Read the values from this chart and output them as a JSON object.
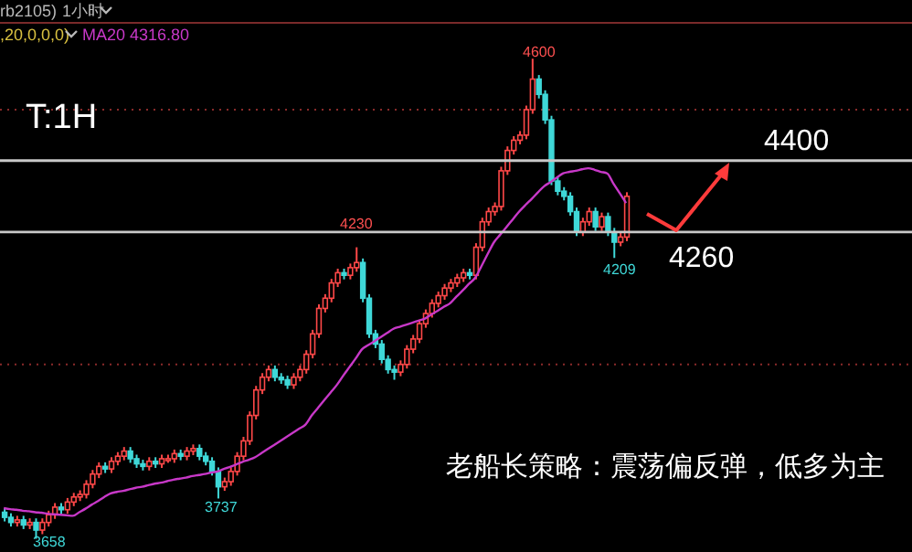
{
  "chart_data": {
    "type": "candlestick",
    "categories": [
      null,
      null,
      null,
      null,
      null,
      null,
      null,
      null,
      null,
      null,
      null,
      null,
      null,
      null,
      null,
      null,
      null,
      null,
      null,
      null,
      null,
      null,
      null,
      null,
      null,
      null,
      null,
      null,
      null,
      null,
      null,
      null,
      null,
      null,
      null,
      null,
      null,
      null,
      null,
      null,
      null,
      null,
      null,
      null,
      null,
      null,
      null,
      null,
      null,
      null,
      null,
      null,
      null,
      null,
      null,
      null,
      null,
      null,
      null,
      null,
      null,
      null,
      null,
      null,
      null,
      null,
      null,
      null,
      null,
      null,
      null,
      null,
      null,
      null,
      null,
      null,
      null,
      null,
      null,
      null,
      null,
      null,
      null,
      null,
      null,
      null,
      null,
      null,
      null,
      null,
      null,
      null,
      null,
      null,
      null,
      null,
      null,
      null,
      null,
      null
    ],
    "ohlc": [
      [
        3710,
        3718,
        3692,
        3700
      ],
      [
        3700,
        3708,
        3682,
        3690
      ],
      [
        3690,
        3703,
        3682,
        3695
      ],
      [
        3695,
        3703,
        3677,
        3685
      ],
      [
        3685,
        3698,
        3677,
        3690
      ],
      [
        3690,
        3698,
        3658,
        3675
      ],
      [
        3675,
        3698,
        3667,
        3690
      ],
      [
        3690,
        3713,
        3682,
        3705
      ],
      [
        3705,
        3728,
        3697,
        3720
      ],
      [
        3720,
        3728,
        3707,
        3715
      ],
      [
        3715,
        3738,
        3707,
        3730
      ],
      [
        3730,
        3748,
        3722,
        3740
      ],
      [
        3740,
        3753,
        3732,
        3745
      ],
      [
        3745,
        3773,
        3737,
        3765
      ],
      [
        3765,
        3793,
        3757,
        3785
      ],
      [
        3785,
        3808,
        3777,
        3800
      ],
      [
        3800,
        3808,
        3787,
        3795
      ],
      [
        3795,
        3818,
        3787,
        3810
      ],
      [
        3810,
        3828,
        3802,
        3820
      ],
      [
        3820,
        3838,
        3812,
        3830
      ],
      [
        3830,
        3838,
        3807,
        3815
      ],
      [
        3815,
        3823,
        3797,
        3805
      ],
      [
        3805,
        3813,
        3792,
        3800
      ],
      [
        3800,
        3818,
        3792,
        3810
      ],
      [
        3810,
        3818,
        3797,
        3805
      ],
      [
        3805,
        3823,
        3797,
        3815
      ],
      [
        3815,
        3823,
        3807,
        3815
      ],
      [
        3815,
        3833,
        3807,
        3825
      ],
      [
        3825,
        3833,
        3812,
        3820
      ],
      [
        3820,
        3838,
        3812,
        3830
      ],
      [
        3830,
        3843,
        3822,
        3835
      ],
      [
        3835,
        3843,
        3812,
        3820
      ],
      [
        3820,
        3828,
        3802,
        3810
      ],
      [
        3810,
        3818,
        3782,
        3790
      ],
      [
        3790,
        3798,
        3737,
        3760
      ],
      [
        3760,
        3778,
        3752,
        3770
      ],
      [
        3770,
        3798,
        3762,
        3790
      ],
      [
        3790,
        3828,
        3782,
        3820
      ],
      [
        3820,
        3858,
        3812,
        3850
      ],
      [
        3850,
        3908,
        3842,
        3900
      ],
      [
        3900,
        3958,
        3892,
        3950
      ],
      [
        3950,
        3983,
        3942,
        3975
      ],
      [
        3975,
        3998,
        3967,
        3990
      ],
      [
        3990,
        3998,
        3967,
        3975
      ],
      [
        3975,
        3983,
        3962,
        3970
      ],
      [
        3970,
        3978,
        3952,
        3960
      ],
      [
        3960,
        3983,
        3952,
        3975
      ],
      [
        3975,
        3998,
        3967,
        3990
      ],
      [
        3990,
        4028,
        3982,
        4020
      ],
      [
        4020,
        4068,
        4012,
        4060
      ],
      [
        4060,
        4118,
        4052,
        4110
      ],
      [
        4110,
        4138,
        4102,
        4130
      ],
      [
        4130,
        4168,
        4122,
        4160
      ],
      [
        4160,
        4188,
        4152,
        4180
      ],
      [
        4180,
        4188,
        4167,
        4175
      ],
      [
        4175,
        4198,
        4167,
        4190
      ],
      [
        4190,
        4230,
        4182,
        4200
      ],
      [
        4200,
        4208,
        4122,
        4130
      ],
      [
        4130,
        4138,
        4052,
        4060
      ],
      [
        4060,
        4068,
        4032,
        4040
      ],
      [
        4040,
        4048,
        4002,
        4010
      ],
      [
        4010,
        4018,
        3982,
        3990
      ],
      [
        3990,
        3998,
        3970,
        3985
      ],
      [
        3985,
        4008,
        3977,
        4000
      ],
      [
        4000,
        4038,
        3992,
        4030
      ],
      [
        4030,
        4058,
        4022,
        4050
      ],
      [
        4050,
        4088,
        4042,
        4080
      ],
      [
        4080,
        4108,
        4072,
        4100
      ],
      [
        4100,
        4128,
        4092,
        4120
      ],
      [
        4120,
        4143,
        4112,
        4135
      ],
      [
        4135,
        4158,
        4127,
        4150
      ],
      [
        4150,
        4168,
        4142,
        4160
      ],
      [
        4160,
        4178,
        4152,
        4170
      ],
      [
        4170,
        4188,
        4162,
        4180
      ],
      [
        4180,
        4188,
        4167,
        4175
      ],
      [
        4175,
        4238,
        4167,
        4230
      ],
      [
        4230,
        4288,
        4222,
        4280
      ],
      [
        4280,
        4308,
        4272,
        4300
      ],
      [
        4300,
        4318,
        4292,
        4310
      ],
      [
        4310,
        4388,
        4302,
        4380
      ],
      [
        4380,
        4428,
        4372,
        4420
      ],
      [
        4420,
        4448,
        4412,
        4440
      ],
      [
        4440,
        4458,
        4432,
        4450
      ],
      [
        4450,
        4508,
        4442,
        4500
      ],
      [
        4500,
        4600,
        4492,
        4560
      ],
      [
        4560,
        4568,
        4522,
        4530
      ],
      [
        4530,
        4538,
        4472,
        4480
      ],
      [
        4480,
        4488,
        4352,
        4360
      ],
      [
        4360,
        4368,
        4332,
        4340
      ],
      [
        4340,
        4348,
        4322,
        4330
      ],
      [
        4330,
        4338,
        4292,
        4300
      ],
      [
        4300,
        4308,
        4252,
        4260
      ],
      [
        4260,
        4288,
        4252,
        4280
      ],
      [
        4280,
        4308,
        4272,
        4300
      ],
      [
        4300,
        4308,
        4262,
        4270
      ],
      [
        4270,
        4298,
        4262,
        4290
      ],
      [
        4290,
        4298,
        4252,
        4260
      ],
      [
        4260,
        4268,
        4209,
        4240
      ],
      [
        4240,
        4258,
        4232,
        4250
      ],
      [
        4250,
        4338,
        4242,
        4330
      ]
    ],
    "series": [
      {
        "type": "line",
        "color": "#c838c8",
        "values": [
          3718,
          3716,
          3715,
          3713,
          3712,
          3710,
          3709,
          3707,
          3706,
          3705,
          3704,
          3703,
          3710,
          3717,
          3725,
          3732,
          3740,
          3747,
          3750,
          3752,
          3755,
          3758,
          3760,
          3763,
          3766,
          3768,
          3771,
          3774,
          3776,
          3778,
          3781,
          3783,
          3785,
          3788,
          3790,
          3795,
          3799,
          3804,
          3809,
          3813,
          3818,
          3826,
          3834,
          3842,
          3850,
          3858,
          3866,
          3874,
          3882,
          3900,
          3915,
          3930,
          3945,
          3960,
          3978,
          3995,
          4012,
          4030,
          4038,
          4046,
          4054,
          4062,
          4070,
          4074,
          4078,
          4082,
          4086,
          4090,
          4098,
          4105,
          4113,
          4120,
          4133,
          4145,
          4158,
          4170,
          4193,
          4217,
          4240,
          4255,
          4270,
          4285,
          4300,
          4313,
          4325,
          4338,
          4350,
          4358,
          4367,
          4375,
          4378,
          4380,
          4383,
          4385,
          4382,
          4378,
          4375,
          4355,
          4336,
          4317
        ]
      }
    ],
    "ylim": [
      3632,
      4665
    ],
    "yticks": [
      {
        "value": 4000,
        "label": null
      },
      {
        "value": 4500,
        "label": null
      }
    ],
    "grid": "y",
    "tick_labels": false,
    "ref_lines": [
      {
        "axis": "y",
        "value": 4400,
        "label": "4400",
        "color": "#c8c8c8"
      },
      {
        "axis": "y",
        "value": 4260,
        "label": "4260",
        "color": "#c8c8c8"
      }
    ],
    "annotations": [
      "rb2105)",
      "1小时",
      ",20,0,0,0)",
      "MA20 4316.80",
      "T:1H",
      "4600",
      "4230",
      "3737",
      "4209",
      "3658",
      "老船长策略：震荡偏反弹，低多为主"
    ]
  }
}
